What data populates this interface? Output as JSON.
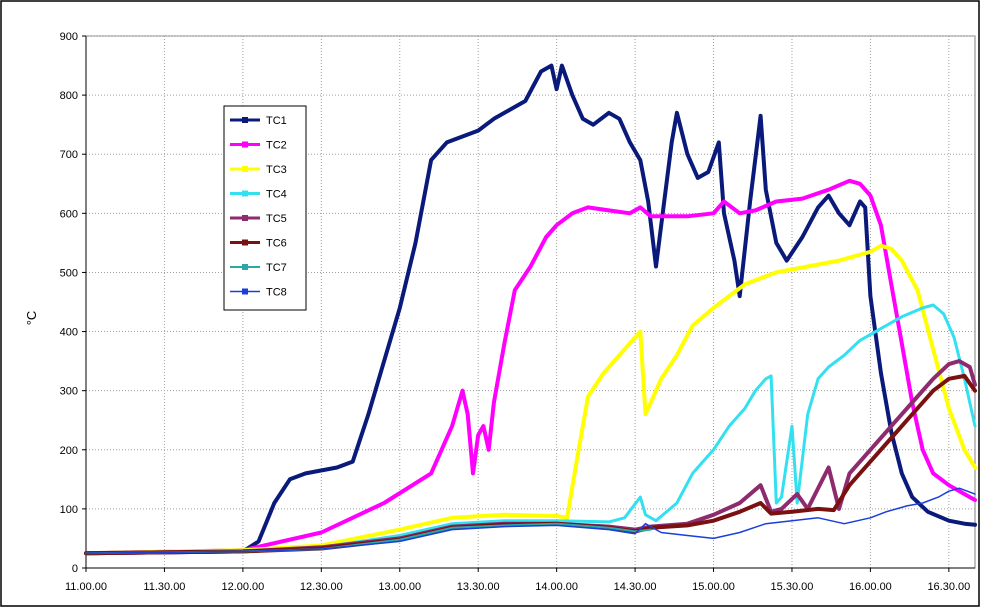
{
  "chart_data": {
    "type": "line",
    "title": "",
    "xlabel": "",
    "ylabel": "°C",
    "xlim": [
      "11.00.00",
      "16.40.00"
    ],
    "ylim": [
      0,
      900
    ],
    "ytick_step": 100,
    "x_ticks": [
      "11.00.00",
      "11.30.00",
      "12.00.00",
      "12.30.00",
      "13.00.00",
      "13.30.00",
      "14.00.00",
      "14.30.00",
      "15.00.00",
      "15.30.00",
      "16.00.00",
      "16.30.00"
    ],
    "grid": true,
    "legend_position": "upper-left",
    "series": [
      {
        "name": "TC1",
        "color": "#0a1a7a",
        "width": 4,
        "points": [
          [
            "11.00.00",
            25
          ],
          [
            "12.00.00",
            28
          ],
          [
            "12.06.00",
            45
          ],
          [
            "12.12.00",
            110
          ],
          [
            "12.18.00",
            150
          ],
          [
            "12.24.00",
            160
          ],
          [
            "12.36.00",
            170
          ],
          [
            "12.42.00",
            180
          ],
          [
            "12.48.00",
            260
          ],
          [
            "12.54.00",
            350
          ],
          [
            "13.00.00",
            440
          ],
          [
            "13.06.00",
            550
          ],
          [
            "13.12.00",
            690
          ],
          [
            "13.18.00",
            720
          ],
          [
            "13.30.00",
            740
          ],
          [
            "13.36.00",
            760
          ],
          [
            "13.42.00",
            775
          ],
          [
            "13.48.00",
            790
          ],
          [
            "13.54.00",
            840
          ],
          [
            "13.58.00",
            850
          ],
          [
            "14.00.00",
            810
          ],
          [
            "14.02.00",
            850
          ],
          [
            "14.06.00",
            800
          ],
          [
            "14.10.00",
            760
          ],
          [
            "14.14.00",
            750
          ],
          [
            "14.20.00",
            770
          ],
          [
            "14.24.00",
            760
          ],
          [
            "14.28.00",
            720
          ],
          [
            "14.32.00",
            690
          ],
          [
            "14.35.00",
            620
          ],
          [
            "14.38.00",
            510
          ],
          [
            "14.40.00",
            580
          ],
          [
            "14.44.00",
            720
          ],
          [
            "14.46.00",
            770
          ],
          [
            "14.50.00",
            700
          ],
          [
            "14.54.00",
            660
          ],
          [
            "14.58.00",
            670
          ],
          [
            "15.02.00",
            720
          ],
          [
            "15.04.00",
            600
          ],
          [
            "15.08.00",
            520
          ],
          [
            "15.10.00",
            460
          ],
          [
            "15.14.00",
            620
          ],
          [
            "15.18.00",
            765
          ],
          [
            "15.20.00",
            640
          ],
          [
            "15.24.00",
            550
          ],
          [
            "15.28.00",
            520
          ],
          [
            "15.34.00",
            560
          ],
          [
            "15.40.00",
            610
          ],
          [
            "15.44.00",
            630
          ],
          [
            "15.48.00",
            600
          ],
          [
            "15.52.00",
            580
          ],
          [
            "15.56.00",
            620
          ],
          [
            "15.58.00",
            610
          ],
          [
            "16.00.00",
            460
          ],
          [
            "16.04.00",
            330
          ],
          [
            "16.08.00",
            230
          ],
          [
            "16.12.00",
            160
          ],
          [
            "16.16.00",
            120
          ],
          [
            "16.22.00",
            95
          ],
          [
            "16.30.00",
            80
          ],
          [
            "16.36.00",
            75
          ],
          [
            "16.40.00",
            73
          ]
        ]
      },
      {
        "name": "TC2",
        "color": "#ff00ff",
        "width": 4,
        "points": [
          [
            "11.00.00",
            25
          ],
          [
            "12.00.00",
            30
          ],
          [
            "12.30.00",
            60
          ],
          [
            "12.54.00",
            110
          ],
          [
            "13.12.00",
            160
          ],
          [
            "13.20.00",
            240
          ],
          [
            "13.24.00",
            300
          ],
          [
            "13.26.00",
            260
          ],
          [
            "13.28.00",
            160
          ],
          [
            "13.30.00",
            225
          ],
          [
            "13.32.00",
            240
          ],
          [
            "13.34.00",
            200
          ],
          [
            "13.36.00",
            280
          ],
          [
            "13.40.00",
            380
          ],
          [
            "13.44.00",
            470
          ],
          [
            "13.50.00",
            510
          ],
          [
            "13.56.00",
            560
          ],
          [
            "14.00.00",
            580
          ],
          [
            "14.06.00",
            600
          ],
          [
            "14.12.00",
            610
          ],
          [
            "14.20.00",
            605
          ],
          [
            "14.28.00",
            600
          ],
          [
            "14.32.00",
            610
          ],
          [
            "14.36.00",
            595
          ],
          [
            "14.50.00",
            595
          ],
          [
            "15.00.00",
            600
          ],
          [
            "15.04.00",
            620
          ],
          [
            "15.10.00",
            600
          ],
          [
            "15.16.00",
            605
          ],
          [
            "15.24.00",
            620
          ],
          [
            "15.34.00",
            625
          ],
          [
            "15.44.00",
            640
          ],
          [
            "15.52.00",
            655
          ],
          [
            "15.56.00",
            650
          ],
          [
            "16.00.00",
            630
          ],
          [
            "16.04.00",
            580
          ],
          [
            "16.08.00",
            480
          ],
          [
            "16.12.00",
            380
          ],
          [
            "16.16.00",
            280
          ],
          [
            "16.20.00",
            200
          ],
          [
            "16.24.00",
            160
          ],
          [
            "16.30.00",
            140
          ],
          [
            "16.36.00",
            125
          ],
          [
            "16.40.00",
            115
          ]
        ]
      },
      {
        "name": "TC3",
        "color": "#ffff00",
        "width": 4,
        "points": [
          [
            "11.00.00",
            25
          ],
          [
            "12.00.00",
            30
          ],
          [
            "12.30.00",
            38
          ],
          [
            "13.00.00",
            65
          ],
          [
            "13.20.00",
            85
          ],
          [
            "13.40.00",
            90
          ],
          [
            "14.00.00",
            88
          ],
          [
            "14.04.00",
            85
          ],
          [
            "14.08.00",
            190
          ],
          [
            "14.12.00",
            290
          ],
          [
            "14.18.00",
            330
          ],
          [
            "14.24.00",
            360
          ],
          [
            "14.30.00",
            390
          ],
          [
            "14.32.00",
            400
          ],
          [
            "14.34.00",
            260
          ],
          [
            "14.36.00",
            280
          ],
          [
            "14.40.00",
            320
          ],
          [
            "14.46.00",
            360
          ],
          [
            "14.52.00",
            410
          ],
          [
            "15.00.00",
            440
          ],
          [
            "15.06.00",
            460
          ],
          [
            "15.12.00",
            480
          ],
          [
            "15.24.00",
            500
          ],
          [
            "15.36.00",
            510
          ],
          [
            "15.48.00",
            520
          ],
          [
            "16.00.00",
            535
          ],
          [
            "16.04.00",
            545
          ],
          [
            "16.08.00",
            540
          ],
          [
            "16.12.00",
            520
          ],
          [
            "16.18.00",
            470
          ],
          [
            "16.24.00",
            370
          ],
          [
            "16.30.00",
            270
          ],
          [
            "16.36.00",
            200
          ],
          [
            "16.40.00",
            170
          ]
        ]
      },
      {
        "name": "TC4",
        "color": "#33e0f0",
        "width": 3,
        "points": [
          [
            "11.00.00",
            25
          ],
          [
            "12.00.00",
            28
          ],
          [
            "12.30.00",
            35
          ],
          [
            "13.00.00",
            55
          ],
          [
            "13.20.00",
            75
          ],
          [
            "13.40.00",
            80
          ],
          [
            "14.00.00",
            80
          ],
          [
            "14.20.00",
            78
          ],
          [
            "14.26.00",
            85
          ],
          [
            "14.32.00",
            120
          ],
          [
            "14.34.00",
            90
          ],
          [
            "14.38.00",
            80
          ],
          [
            "14.46.00",
            110
          ],
          [
            "14.52.00",
            160
          ],
          [
            "15.00.00",
            200
          ],
          [
            "15.06.00",
            240
          ],
          [
            "15.12.00",
            270
          ],
          [
            "15.16.00",
            300
          ],
          [
            "15.20.00",
            320
          ],
          [
            "15.22.00",
            325
          ],
          [
            "15.24.00",
            110
          ],
          [
            "15.26.00",
            120
          ],
          [
            "15.30.00",
            240
          ],
          [
            "15.32.00",
            110
          ],
          [
            "15.36.00",
            260
          ],
          [
            "15.40.00",
            320
          ],
          [
            "15.44.00",
            340
          ],
          [
            "15.50.00",
            360
          ],
          [
            "15.56.00",
            385
          ],
          [
            "16.04.00",
            405
          ],
          [
            "16.12.00",
            425
          ],
          [
            "16.20.00",
            440
          ],
          [
            "16.24.00",
            445
          ],
          [
            "16.28.00",
            430
          ],
          [
            "16.32.00",
            390
          ],
          [
            "16.36.00",
            320
          ],
          [
            "16.40.00",
            240
          ]
        ]
      },
      {
        "name": "TC5",
        "color": "#8e2a6e",
        "width": 4,
        "points": [
          [
            "11.00.00",
            25
          ],
          [
            "12.00.00",
            28
          ],
          [
            "12.30.00",
            35
          ],
          [
            "13.00.00",
            50
          ],
          [
            "13.20.00",
            70
          ],
          [
            "13.40.00",
            75
          ],
          [
            "14.00.00",
            75
          ],
          [
            "14.20.00",
            70
          ],
          [
            "14.30.00",
            65
          ],
          [
            "14.36.00",
            70
          ],
          [
            "14.50.00",
            75
          ],
          [
            "15.00.00",
            90
          ],
          [
            "15.10.00",
            110
          ],
          [
            "15.18.00",
            140
          ],
          [
            "15.22.00",
            95
          ],
          [
            "15.26.00",
            100
          ],
          [
            "15.32.00",
            125
          ],
          [
            "15.36.00",
            100
          ],
          [
            "15.44.00",
            170
          ],
          [
            "15.48.00",
            100
          ],
          [
            "15.52.00",
            160
          ],
          [
            "16.00.00",
            200
          ],
          [
            "16.08.00",
            240
          ],
          [
            "16.16.00",
            280
          ],
          [
            "16.24.00",
            320
          ],
          [
            "16.30.00",
            345
          ],
          [
            "16.34.00",
            350
          ],
          [
            "16.38.00",
            340
          ],
          [
            "16.40.00",
            310
          ]
        ]
      },
      {
        "name": "TC6",
        "color": "#7a1010",
        "width": 4,
        "points": [
          [
            "11.00.00",
            25
          ],
          [
            "12.00.00",
            28
          ],
          [
            "12.30.00",
            33
          ],
          [
            "13.00.00",
            48
          ],
          [
            "13.20.00",
            68
          ],
          [
            "13.40.00",
            73
          ],
          [
            "14.00.00",
            75
          ],
          [
            "14.20.00",
            68
          ],
          [
            "14.30.00",
            62
          ],
          [
            "14.36.00",
            68
          ],
          [
            "14.50.00",
            72
          ],
          [
            "15.00.00",
            80
          ],
          [
            "15.10.00",
            95
          ],
          [
            "15.18.00",
            110
          ],
          [
            "15.22.00",
            92
          ],
          [
            "15.30.00",
            95
          ],
          [
            "15.40.00",
            100
          ],
          [
            "15.46.00",
            98
          ],
          [
            "15.52.00",
            140
          ],
          [
            "16.00.00",
            180
          ],
          [
            "16.08.00",
            220
          ],
          [
            "16.16.00",
            260
          ],
          [
            "16.24.00",
            300
          ],
          [
            "16.30.00",
            320
          ],
          [
            "16.36.00",
            325
          ],
          [
            "16.40.00",
            300
          ]
        ]
      },
      {
        "name": "TC7",
        "color": "#2aa8a8",
        "width": 2,
        "points": [
          [
            "11.00.00",
            25
          ],
          [
            "12.00.00",
            28
          ],
          [
            "12.30.00",
            32
          ],
          [
            "13.00.00",
            48
          ],
          [
            "13.20.00",
            68
          ],
          [
            "13.40.00",
            72
          ],
          [
            "14.00.00",
            75
          ],
          [
            "14.20.00",
            68
          ],
          [
            "14.30.00",
            62
          ],
          [
            "14.36.00",
            65
          ]
        ]
      },
      {
        "name": "TC8",
        "color": "#1a3fd8",
        "width": 1.5,
        "points": [
          [
            "11.00.00",
            25
          ],
          [
            "12.00.00",
            28
          ],
          [
            "12.30.00",
            32
          ],
          [
            "13.00.00",
            45
          ],
          [
            "13.20.00",
            65
          ],
          [
            "13.40.00",
            70
          ],
          [
            "14.00.00",
            72
          ],
          [
            "14.20.00",
            65
          ],
          [
            "14.30.00",
            58
          ],
          [
            "14.34.00",
            75
          ],
          [
            "14.40.00",
            60
          ],
          [
            "14.50.00",
            55
          ],
          [
            "15.00.00",
            50
          ],
          [
            "15.10.00",
            60
          ],
          [
            "15.20.00",
            75
          ],
          [
            "15.30.00",
            80
          ],
          [
            "15.40.00",
            85
          ],
          [
            "15.50.00",
            75
          ],
          [
            "16.00.00",
            85
          ],
          [
            "16.06.00",
            95
          ],
          [
            "16.14.00",
            105
          ],
          [
            "16.20.00",
            110
          ],
          [
            "16.26.00",
            120
          ],
          [
            "16.30.00",
            130
          ],
          [
            "16.34.00",
            135
          ],
          [
            "16.40.00",
            125
          ]
        ]
      }
    ]
  }
}
